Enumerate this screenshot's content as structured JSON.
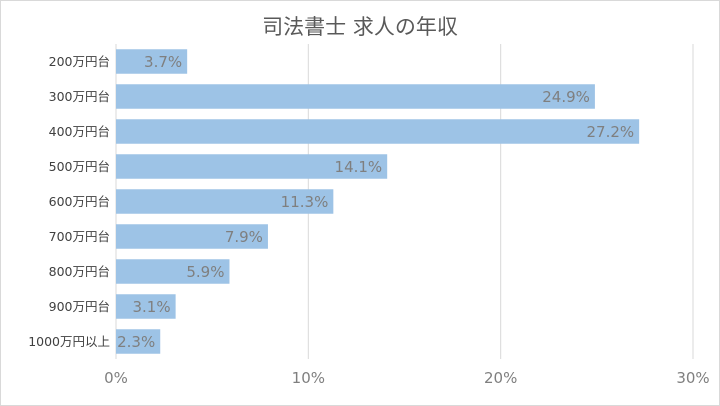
{
  "chart_data": {
    "type": "bar",
    "orientation": "horizontal",
    "title": "司法書士 求人の年収",
    "categories": [
      "200万円台",
      "300万円台",
      "400万円台",
      "500万円台",
      "600万円台",
      "700万円台",
      "800万円台",
      "900万円台",
      "1000万円以上"
    ],
    "values": [
      3.7,
      24.9,
      27.2,
      14.1,
      11.3,
      7.9,
      5.9,
      3.1,
      2.3
    ],
    "data_labels": [
      "3.7%",
      "24.9%",
      "27.2%",
      "14.1%",
      "11.3%",
      "7.9%",
      "5.9%",
      "3.1%",
      "2.3%"
    ],
    "xlim": [
      0,
      30
    ],
    "x_ticks": [
      0,
      10,
      20,
      30
    ],
    "x_tick_labels": [
      "0%",
      "10%",
      "20%",
      "30%"
    ],
    "xlabel": "",
    "ylabel": "",
    "grid": "vertical",
    "legend": "none",
    "bar_color": "#9dc3e6",
    "grid_color": "#d9d9d9",
    "text_color": "#7f7f7f"
  }
}
